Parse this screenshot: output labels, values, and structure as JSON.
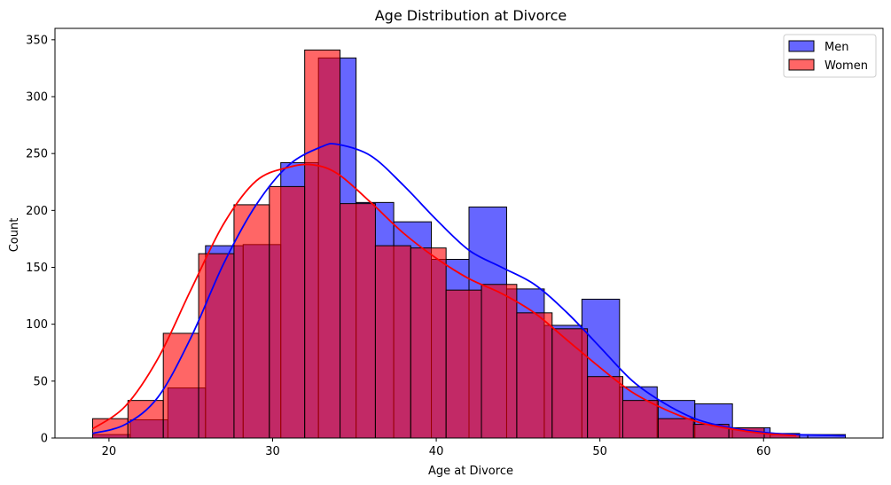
{
  "chart_data": {
    "type": "histogram",
    "title": "Age Distribution at Divorce",
    "xlabel": "Age at Divorce",
    "ylabel": "Count",
    "xlim": [
      16.7,
      67.3
    ],
    "ylim": [
      0,
      360
    ],
    "xticks": [
      20,
      30,
      40,
      50,
      60
    ],
    "yticks": [
      0,
      50,
      100,
      150,
      200,
      250,
      300,
      350
    ],
    "legend": {
      "placement": "top-right"
    },
    "series": [
      {
        "name": "Men",
        "color": "#0000ff",
        "fill_opacity": 0.6,
        "bin_edges": [
          19.0,
          21.3,
          23.6,
          25.9,
          28.2,
          30.5,
          32.8,
          35.1,
          37.4,
          39.7,
          42.0,
          44.3,
          46.6,
          48.9,
          51.2,
          53.5,
          55.8,
          58.1,
          60.4,
          62.7,
          65.0
        ],
        "counts": [
          3,
          16,
          44,
          169,
          170,
          242,
          334,
          207,
          190,
          157,
          203,
          131,
          99,
          122,
          45,
          33,
          30,
          9,
          3,
          3
        ],
        "kde_x": [
          19,
          21,
          23,
          25,
          27,
          29,
          31,
          33,
          34,
          36,
          38,
          40,
          42,
          44,
          46,
          48,
          50,
          52,
          54,
          56,
          58,
          60,
          62,
          65
        ],
        "kde_y": [
          4,
          12,
          36,
          88,
          153,
          205,
          240,
          256,
          258,
          248,
          222,
          192,
          165,
          150,
          135,
          110,
          80,
          50,
          30,
          16,
          9,
          5,
          3,
          2
        ]
      },
      {
        "name": "Women",
        "color": "#ff0000",
        "fill_opacity": 0.6,
        "bin_edges": [
          19.0,
          21.16,
          23.32,
          25.48,
          27.64,
          29.8,
          31.96,
          34.12,
          36.28,
          38.44,
          40.6,
          42.76,
          44.92,
          47.08,
          49.24,
          51.4,
          53.56,
          55.72,
          57.88,
          60.04,
          62.2
        ],
        "counts": [
          17,
          33,
          92,
          162,
          205,
          221,
          341,
          206,
          169,
          167,
          130,
          135,
          110,
          96,
          54,
          33,
          17,
          12,
          9,
          4
        ],
        "kde_x": [
          19,
          21,
          23,
          25,
          27,
          29,
          31,
          32.5,
          34,
          36,
          38,
          40,
          42,
          44,
          46,
          48,
          50,
          52,
          54,
          56,
          58,
          60,
          62
        ],
        "kde_y": [
          8,
          28,
          70,
          130,
          188,
          226,
          238,
          240,
          232,
          207,
          180,
          158,
          140,
          127,
          110,
          86,
          62,
          40,
          25,
          14,
          8,
          4,
          2
        ]
      }
    ]
  }
}
